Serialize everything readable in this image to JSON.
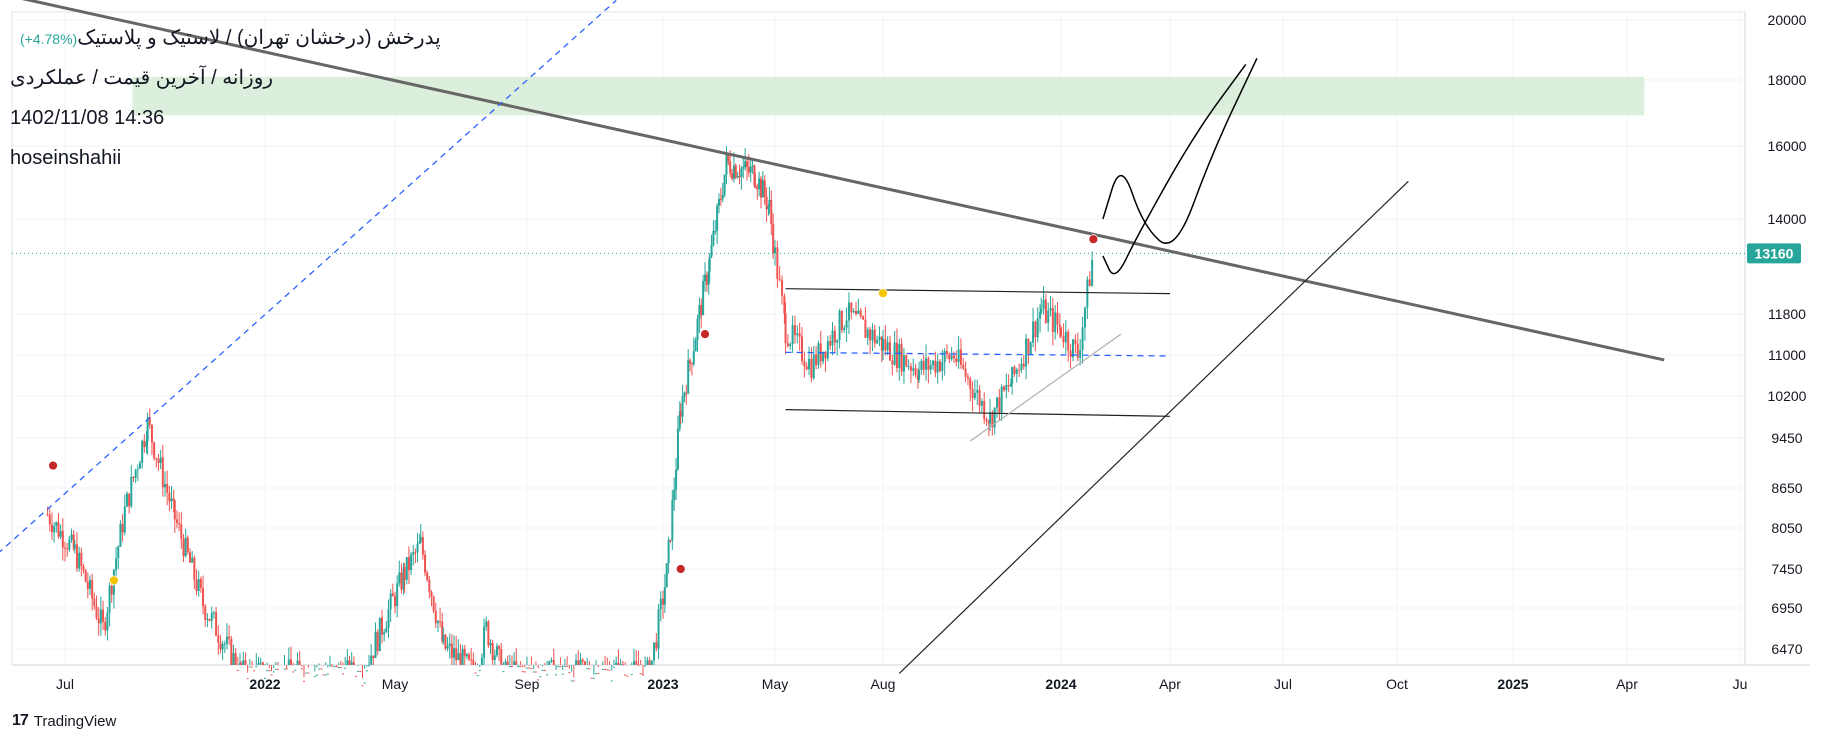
{
  "legend": {
    "symbol_name": "پدرخش (درخشان تهران) / لاستیک و پلاستیک",
    "change": "(+4.78%)",
    "timeframe_line": "روزانه / آخرین قیمت / عملکردی",
    "datetime": "1402/11/08 14:36",
    "author": "hoseinshahii"
  },
  "footer": {
    "brand": "TradingView",
    "logo": "17"
  },
  "chart_data": {
    "type": "candlestick",
    "title": "پدرخش (درخشان تهران) / لاستیک و پلاستیک",
    "timeframe": "daily",
    "scale": "log",
    "last_price": 13160,
    "change_percent": "+4.78%",
    "x_tick_labels": [
      "Jul",
      "2022",
      "May",
      "Sep",
      "2023",
      "May",
      "Aug",
      "2024",
      "Apr",
      "Jul",
      "Oct",
      "2025",
      "Apr",
      "Ju"
    ],
    "x_tick_dates": [
      "2021-07-01",
      "2022-01-01",
      "2022-05-01",
      "2022-09-01",
      "2023-01-01",
      "2023-05-01",
      "2023-08-01",
      "2024-01-01",
      "2024-04-01",
      "2024-07-01",
      "2024-10-01",
      "2025-01-01",
      "2025-04-01",
      "2025-07-01"
    ],
    "y_tick_labels": [
      "20000",
      "18000",
      "16000",
      "14000",
      "11800",
      "11000",
      "10200",
      "9450",
      "8650",
      "8050",
      "7450",
      "6950",
      "6470"
    ],
    "y_range": [
      6200,
      20500
    ],
    "grid": true,
    "colors": {
      "up": "#26a69a",
      "down": "#ef5350",
      "price_label": "#26a69a",
      "zone": "#d8ecd8",
      "trend_main": "#666666",
      "dashed": "#2962ff"
    },
    "price_path": [
      [
        "2021-06-15",
        8250
      ],
      [
        "2021-07-10",
        7700
      ],
      [
        "2021-08-05",
        6700
      ],
      [
        "2021-08-25",
        8300
      ],
      [
        "2021-09-15",
        9700
      ],
      [
        "2021-10-10",
        8200
      ],
      [
        "2021-11-05",
        7000
      ],
      [
        "2021-12-10",
        6200
      ],
      [
        "2022-04-01",
        6200
      ],
      [
        "2022-05-10",
        7400
      ],
      [
        "2022-05-25",
        7800
      ],
      [
        "2022-06-15",
        6500
      ],
      [
        "2022-07-15",
        6200
      ],
      [
        "2022-07-25",
        6700
      ],
      [
        "2022-08-10",
        6200
      ],
      [
        "2022-12-20",
        6200
      ],
      [
        "2023-01-05",
        7400
      ],
      [
        "2023-01-20",
        10000
      ],
      [
        "2023-02-05",
        11400
      ],
      [
        "2023-02-20",
        13000
      ],
      [
        "2023-03-10",
        15500
      ],
      [
        "2023-04-10",
        15200
      ],
      [
        "2023-04-25",
        14300
      ],
      [
        "2023-05-10",
        11500
      ],
      [
        "2023-06-01",
        10800
      ],
      [
        "2023-07-01",
        11800
      ],
      [
        "2023-08-01",
        11200
      ],
      [
        "2023-09-01",
        10700
      ],
      [
        "2023-10-01",
        11000
      ],
      [
        "2023-11-01",
        9800
      ],
      [
        "2023-11-20",
        10500
      ],
      [
        "2023-12-15",
        11900
      ],
      [
        "2024-01-01",
        11500
      ],
      [
        "2024-01-15",
        11000
      ],
      [
        "2024-01-28",
        13160
      ]
    ],
    "markers": [
      {
        "date": "2021-06-20",
        "price": 9000,
        "color": "#c62828"
      },
      {
        "date": "2021-08-15",
        "price": 7300,
        "color": "#f5c400"
      },
      {
        "date": "2023-01-20",
        "price": 7450,
        "color": "#c62828"
      },
      {
        "date": "2023-02-15",
        "price": 11400,
        "color": "#c62828"
      },
      {
        "date": "2023-08-01",
        "price": 12250,
        "color": "#f5c400"
      },
      {
        "date": "2024-01-28",
        "price": 13500,
        "color": "#c62828"
      }
    ],
    "drawings": [
      {
        "type": "trend-line",
        "name": "main-trend-line",
        "from": [
          "2021-03-01",
          21500
        ],
        "to": [
          "2025-05-01",
          10900
        ]
      },
      {
        "type": "horizontal-zone",
        "name": "target-zone",
        "from_date": "2021-09-01",
        "to_date": "2025-04-15",
        "top": 18100,
        "bottom": 16900
      },
      {
        "type": "dashed-line",
        "name": "long-term-dashed-trend",
        "from": [
          "2021-03-01",
          6900
        ],
        "to": [
          "2022-11-20",
          20700
        ]
      },
      {
        "type": "line",
        "name": "range-top-line",
        "from": [
          "2023-05-10",
          12350
        ],
        "to": [
          "2024-04-01",
          12240
        ]
      },
      {
        "type": "line",
        "name": "range-bottom-line",
        "from": [
          "2023-05-10",
          9950
        ],
        "to": [
          "2024-04-01",
          9830
        ]
      },
      {
        "type": "dashed-line",
        "name": "range-mid-dashed-line",
        "from": [
          "2023-05-10",
          11050
        ],
        "to": [
          "2024-04-01",
          10980
        ]
      },
      {
        "type": "line",
        "name": "rising-support-line",
        "from": [
          "2023-10-15",
          9400
        ],
        "to": [
          "2024-02-20",
          11400
        ]
      },
      {
        "type": "line",
        "name": "long-rising-line",
        "from": [
          "2023-08-15",
          6200
        ],
        "to": [
          "2024-10-10",
          15000
        ]
      },
      {
        "type": "freehand",
        "name": "projection-path",
        "points": [
          [
            "2024-02-05",
            14000
          ],
          [
            "2024-02-20",
            15600
          ],
          [
            "2024-03-10",
            13800
          ],
          [
            "2024-04-05",
            13150
          ],
          [
            "2024-05-05",
            15800
          ],
          [
            "2024-06-10",
            18700
          ]
        ]
      },
      {
        "type": "freehand",
        "name": "projection-path-alt",
        "points": [
          [
            "2024-02-05",
            13100
          ],
          [
            "2024-02-15",
            12500
          ],
          [
            "2024-03-05",
            13600
          ],
          [
            "2024-04-20",
            16300
          ],
          [
            "2024-06-01",
            18500
          ]
        ]
      }
    ]
  }
}
